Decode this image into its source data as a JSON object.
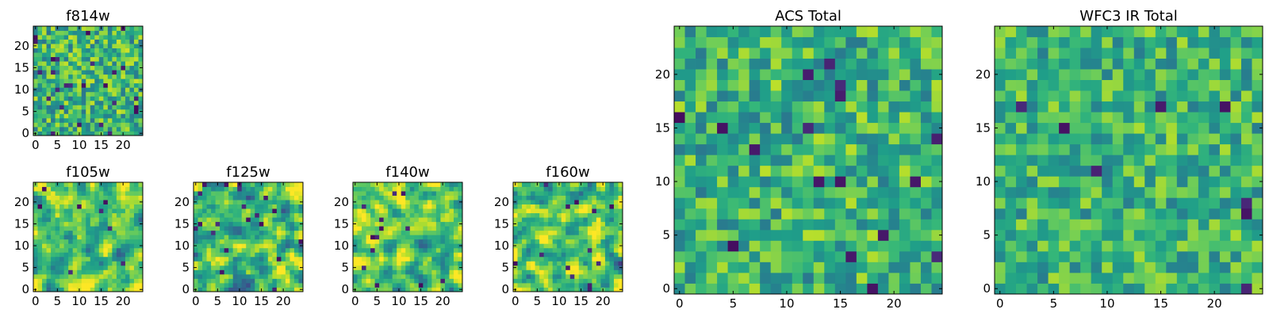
{
  "chart_data": [
    {
      "id": "f814w",
      "type": "heatmap",
      "title": "f814w",
      "colormap": "viridis",
      "xlim": [
        -0.5,
        24.5
      ],
      "ylim": [
        -0.5,
        24.5
      ],
      "xticks": [
        0,
        5,
        10,
        15,
        20
      ],
      "xtick_labels": [
        "0",
        "5",
        "10",
        "15",
        "20"
      ],
      "yticks": [
        0,
        5,
        10,
        15,
        20
      ],
      "ytick_labels": [
        "0",
        "5",
        "10",
        "15",
        "20"
      ],
      "grid_size": [
        25,
        25
      ],
      "seed": 17,
      "value_mean": 0.66,
      "value_spread": 0.16,
      "dark_cell_fraction": 0.05,
      "smoothing": 0
    },
    {
      "id": "f105w",
      "type": "heatmap",
      "title": "f105w",
      "colormap": "viridis",
      "xlim": [
        -0.5,
        24.5
      ],
      "ylim": [
        -0.5,
        24.5
      ],
      "xticks": [
        0,
        5,
        10,
        15,
        20
      ],
      "xtick_labels": [
        "0",
        "5",
        "10",
        "15",
        "20"
      ],
      "yticks": [
        0,
        5,
        10,
        15,
        20
      ],
      "ytick_labels": [
        "0",
        "5",
        "10",
        "15",
        "20"
      ],
      "grid_size": [
        25,
        25
      ],
      "seed": 31,
      "value_mean": 0.72,
      "value_spread": 0.15,
      "dark_cell_fraction": 0.02,
      "smoothing": 1
    },
    {
      "id": "f125w",
      "type": "heatmap",
      "title": "f125w",
      "colormap": "viridis",
      "xlim": [
        -0.5,
        24.5
      ],
      "ylim": [
        -0.5,
        24.5
      ],
      "xticks": [
        0,
        5,
        10,
        15,
        20
      ],
      "xtick_labels": [
        "0",
        "5",
        "10",
        "15",
        "20"
      ],
      "yticks": [
        0,
        5,
        10,
        15,
        20
      ],
      "ytick_labels": [
        "0",
        "5",
        "10",
        "15",
        "20"
      ],
      "grid_size": [
        25,
        25
      ],
      "seed": 47,
      "value_mean": 0.68,
      "value_spread": 0.17,
      "dark_cell_fraction": 0.03,
      "smoothing": 1
    },
    {
      "id": "f140w",
      "type": "heatmap",
      "title": "f140w",
      "colormap": "viridis",
      "xlim": [
        -0.5,
        24.5
      ],
      "ylim": [
        -0.5,
        24.5
      ],
      "xticks": [
        0,
        5,
        10,
        15,
        20
      ],
      "xtick_labels": [
        "0",
        "5",
        "10",
        "15",
        "20"
      ],
      "yticks": [
        0,
        5,
        10,
        15,
        20
      ],
      "ytick_labels": [
        "0",
        "5",
        "10",
        "15",
        "20"
      ],
      "grid_size": [
        25,
        25
      ],
      "seed": 59,
      "value_mean": 0.74,
      "value_spread": 0.15,
      "dark_cell_fraction": 0.02,
      "smoothing": 1
    },
    {
      "id": "f160w",
      "type": "heatmap",
      "title": "f160w",
      "colormap": "viridis",
      "xlim": [
        -0.5,
        24.5
      ],
      "ylim": [
        -0.5,
        24.5
      ],
      "xticks": [
        0,
        5,
        10,
        15,
        20
      ],
      "xtick_labels": [
        "0",
        "5",
        "10",
        "15",
        "20"
      ],
      "yticks": [
        0,
        5,
        10,
        15,
        20
      ],
      "ytick_labels": [
        "0",
        "5",
        "10",
        "15",
        "20"
      ],
      "grid_size": [
        25,
        25
      ],
      "seed": 73,
      "value_mean": 0.72,
      "value_spread": 0.16,
      "dark_cell_fraction": 0.02,
      "smoothing": 1
    },
    {
      "id": "acs-total",
      "type": "heatmap",
      "title": "ACS Total",
      "colormap": "viridis",
      "xlim": [
        -0.5,
        24.5
      ],
      "ylim": [
        -0.5,
        24.5
      ],
      "xticks": [
        0,
        5,
        10,
        15,
        20
      ],
      "xtick_labels": [
        "0",
        "5",
        "10",
        "15",
        "20"
      ],
      "yticks": [
        0,
        5,
        10,
        15,
        20
      ],
      "ytick_labels": [
        "0",
        "5",
        "10",
        "15",
        "20"
      ],
      "grid_size": [
        25,
        25
      ],
      "seed": 101,
      "value_mean": 0.64,
      "value_spread": 0.14,
      "dark_cell_fraction": 0.035,
      "smoothing": 0
    },
    {
      "id": "wfc3-ir-total",
      "type": "heatmap",
      "title": "WFC3 IR Total",
      "colormap": "viridis",
      "xlim": [
        -0.5,
        24.5
      ],
      "ylim": [
        -0.5,
        24.5
      ],
      "xticks": [
        0,
        5,
        10,
        15,
        20
      ],
      "xtick_labels": [
        "0",
        "5",
        "10",
        "15",
        "20"
      ],
      "yticks": [
        0,
        5,
        10,
        15,
        20
      ],
      "ytick_labels": [
        "0",
        "5",
        "10",
        "15",
        "20"
      ],
      "grid_size": [
        25,
        25
      ],
      "seed": 211,
      "value_mean": 0.65,
      "value_spread": 0.13,
      "dark_cell_fraction": 0.02,
      "smoothing": 0
    }
  ]
}
